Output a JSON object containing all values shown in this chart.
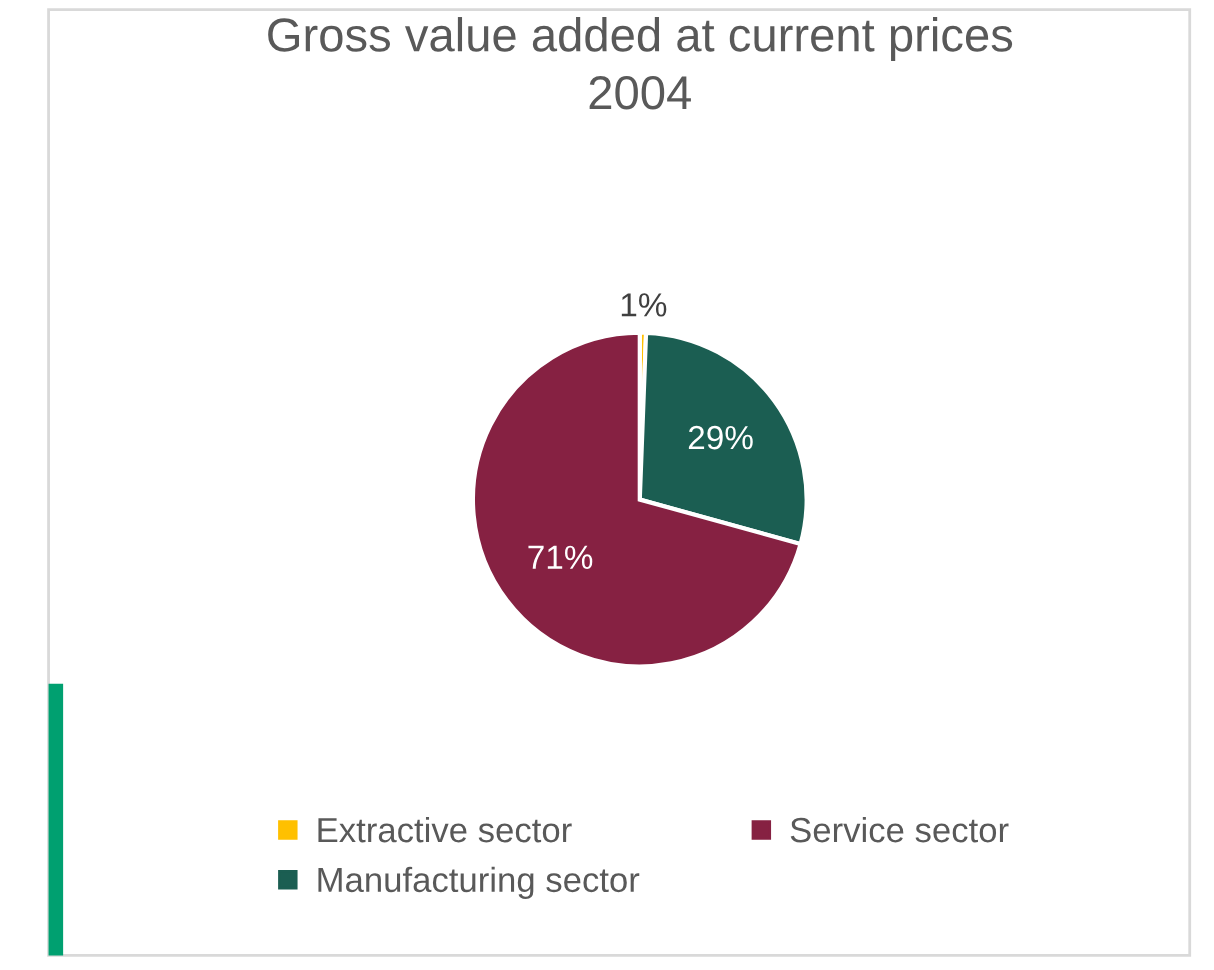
{
  "chart_data": {
    "type": "pie",
    "title": "Gross value added at current prices\n2004",
    "categories": [
      "Extractive sector",
      "Manufacturing sector",
      "Service sector"
    ],
    "values": [
      0.6,
      28.7,
      70.7
    ],
    "value_labels": [
      "1%",
      "29%",
      "71%"
    ],
    "colors": [
      "#ffc000",
      "#1b5e52",
      "#862142"
    ],
    "legend": "bottom"
  }
}
